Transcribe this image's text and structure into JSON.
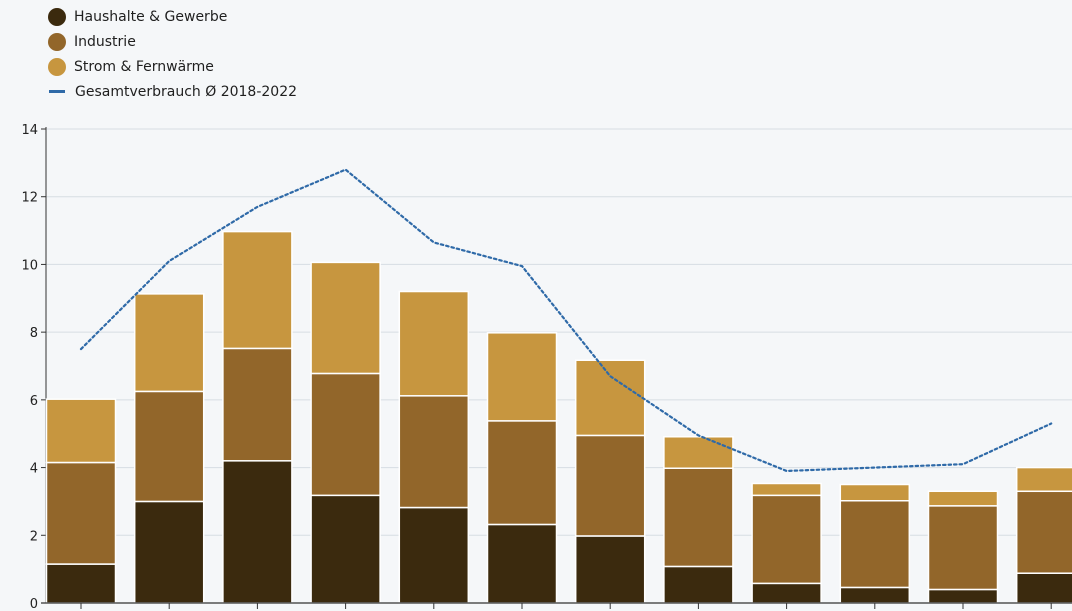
{
  "chart_data": {
    "type": "bar",
    "stacked": true,
    "categories": [
      "",
      "",
      "",
      "",
      "",
      "",
      "",
      "",
      "",
      "",
      "",
      ""
    ],
    "series": [
      {
        "name": "Haushalte & Gewerbe",
        "color": "#3b2a0e",
        "values": [
          1.15,
          3.0,
          4.2,
          3.18,
          2.82,
          2.32,
          1.98,
          1.08,
          0.58,
          0.46,
          0.4,
          0.88
        ]
      },
      {
        "name": "Industrie",
        "color": "#92662a",
        "values": [
          3.0,
          3.25,
          3.32,
          3.6,
          3.3,
          3.06,
          2.97,
          2.9,
          2.6,
          2.56,
          2.47,
          2.42
        ]
      },
      {
        "name": "Strom & Fernwärme",
        "color": "#c7963f",
        "values": [
          1.87,
          2.88,
          3.45,
          3.28,
          3.08,
          2.6,
          2.22,
          0.93,
          0.35,
          0.48,
          0.43,
          0.7
        ]
      }
    ],
    "line": {
      "name": "Gesamtverbrauch Ø 2018-2022",
      "color": "#2f6aa8",
      "values": [
        7.5,
        10.1,
        11.7,
        12.8,
        10.65,
        9.95,
        6.7,
        4.95,
        3.9,
        4.0,
        4.1,
        5.3
      ]
    },
    "yticks": [
      "0",
      "2",
      "4",
      "6",
      "8",
      "10",
      "12",
      "14"
    ],
    "ylim": [
      0,
      14
    ],
    "grid": true,
    "legend_position": "top-left"
  }
}
